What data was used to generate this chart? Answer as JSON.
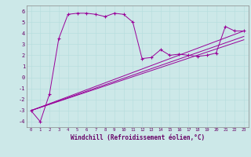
{
  "xlabel": "Windchill (Refroidissement éolien,°C)",
  "background_color": "#cce8e8",
  "grid_color": "#aad4d4",
  "line_color": "#990099",
  "xlim": [
    -0.5,
    23.5
  ],
  "ylim": [
    -4.5,
    6.5
  ],
  "xticks": [
    0,
    1,
    2,
    3,
    4,
    5,
    6,
    7,
    8,
    9,
    10,
    11,
    12,
    13,
    14,
    15,
    16,
    17,
    18,
    19,
    20,
    21,
    22,
    23
  ],
  "yticks": [
    -4,
    -3,
    -2,
    -1,
    0,
    1,
    2,
    3,
    4,
    5,
    6
  ],
  "series": [
    [
      0,
      -3.0
    ],
    [
      1,
      -4.0
    ],
    [
      2,
      -1.5
    ],
    [
      3,
      3.5
    ],
    [
      4,
      5.7
    ],
    [
      5,
      5.8
    ],
    [
      6,
      5.8
    ],
    [
      7,
      5.7
    ],
    [
      8,
      5.5
    ],
    [
      9,
      5.8
    ],
    [
      10,
      5.7
    ],
    [
      11,
      5.0
    ],
    [
      12,
      1.7
    ],
    [
      13,
      1.8
    ],
    [
      14,
      2.5
    ],
    [
      15,
      2.0
    ],
    [
      16,
      2.1
    ],
    [
      17,
      2.0
    ],
    [
      18,
      1.9
    ],
    [
      19,
      2.0
    ],
    [
      20,
      2.2
    ],
    [
      21,
      4.6
    ],
    [
      22,
      4.2
    ],
    [
      23,
      4.2
    ]
  ],
  "series2": [
    [
      0,
      -3.0
    ],
    [
      23,
      4.2
    ]
  ],
  "series3": [
    [
      0,
      -3.0
    ],
    [
      23,
      3.7
    ]
  ],
  "series4": [
    [
      0,
      -3.0
    ],
    [
      23,
      3.4
    ]
  ]
}
